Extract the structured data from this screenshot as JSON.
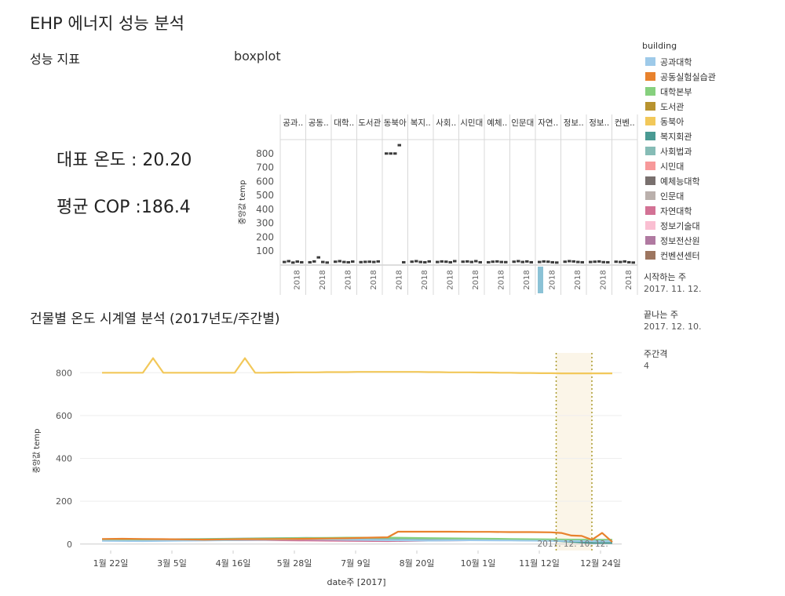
{
  "page": {
    "title": "EHP 에너지 성능 분석",
    "kpi_header": "성능 지표",
    "boxplot_header": "boxplot",
    "kpi_temp": "대표 온도 : 20.20",
    "kpi_cop": "평균 COP :186.4",
    "ts_header": "건물별  온도 시계열 분석 (2017년도/주간별)"
  },
  "legend": {
    "title": "building",
    "items": [
      {
        "label": "공과대학",
        "color": "#9ecae9"
      },
      {
        "label": "공동실험실습관",
        "color": "#e8822d"
      },
      {
        "label": "대학본부",
        "color": "#86d07e"
      },
      {
        "label": "도서관",
        "color": "#b8932f"
      },
      {
        "label": "동북아",
        "color": "#f2c85a"
      },
      {
        "label": "복지회관",
        "color": "#4a9a93"
      },
      {
        "label": "사회법과",
        "color": "#86bcb6"
      },
      {
        "label": "시민대",
        "color": "#f7999a"
      },
      {
        "label": "예체능대학",
        "color": "#79706e"
      },
      {
        "label": "인문대",
        "color": "#bab0ac"
      },
      {
        "label": "자연대학",
        "color": "#d37295"
      },
      {
        "label": "정보기술대",
        "color": "#fabfd2"
      },
      {
        "label": "정보전산원",
        "color": "#b07aa1"
      },
      {
        "label": "컨벤션센터",
        "color": "#9d7660"
      }
    ]
  },
  "filters": {
    "start_label": "시작하는 주",
    "start_value": "2017. 11. 12.",
    "end_label": "끝나는 주",
    "end_value": "2017. 12. 10.",
    "interval_label": "주간격",
    "interval_value": "4"
  },
  "chart_data": [
    {
      "type": "boxplot",
      "ylabel": "중앙값 temp",
      "ylim": [
        0,
        900
      ],
      "yticks": [
        100,
        200,
        300,
        400,
        500,
        600,
        700,
        800
      ],
      "column_headers": [
        "공과..",
        "공동..",
        "대학..",
        "도서관",
        "동북아",
        "복지..",
        "사회..",
        "시민대",
        "예체..",
        "인문대",
        "자연..",
        "정보..",
        "정보..",
        "컨벤.."
      ],
      "x_tick_label": "2018",
      "boxes": [
        {
          "values": [
            22,
            28,
            18,
            25,
            20
          ]
        },
        {
          "values": [
            20,
            26,
            55,
            22,
            18
          ]
        },
        {
          "values": [
            24,
            28,
            22,
            20,
            25
          ]
        },
        {
          "values": [
            21,
            23,
            24,
            22,
            26
          ]
        },
        {
          "values": [
            800,
            800,
            800,
            860,
            20
          ]
        },
        {
          "values": [
            24,
            28,
            22,
            20,
            26
          ]
        },
        {
          "values": [
            22,
            26,
            24,
            20,
            28
          ]
        },
        {
          "values": [
            24,
            26,
            22,
            28,
            20
          ]
        },
        {
          "values": [
            20,
            24,
            26,
            22,
            21
          ]
        },
        {
          "values": [
            24,
            28,
            22,
            26,
            20
          ]
        },
        {
          "values": [
            22,
            26,
            24,
            20,
            18
          ]
        },
        {
          "values": [
            24,
            28,
            26,
            22,
            20
          ]
        },
        {
          "values": [
            22,
            24,
            26,
            21,
            20
          ]
        },
        {
          "values": [
            24,
            22,
            26,
            20,
            18
          ]
        }
      ],
      "highlighted_column": 10
    },
    {
      "type": "line",
      "xlabel": "date주 [2017]",
      "ylabel": "중앙값 temp",
      "ylim": [
        -30,
        900
      ],
      "yticks": [
        0,
        200,
        400,
        600,
        800
      ],
      "x_ticks": [
        "1월 22일",
        "3월 5일",
        "4월 16일",
        "5월 28일",
        "7월 9일",
        "8월 20일",
        "10월 1일",
        "11월 12일",
        "12월 24일"
      ],
      "highlight_range_label": "2017. 12. 10. 12.",
      "highlight_range": [
        44.5,
        48
      ],
      "series": [
        {
          "name": "동북아",
          "color": "#f2c85a",
          "x": [
            0,
            1,
            2,
            3,
            4,
            5,
            6,
            7,
            8,
            9,
            10,
            11,
            12,
            13,
            14,
            15,
            16,
            17,
            18,
            19,
            20,
            21,
            22,
            23,
            24,
            25,
            26,
            27,
            28,
            29,
            30,
            31,
            32,
            33,
            34,
            35,
            36,
            37,
            38,
            39,
            40,
            41,
            42,
            43,
            44,
            45,
            46,
            47,
            48,
            49,
            50
          ],
          "values": [
            800,
            800,
            800,
            800,
            800,
            868,
            800,
            800,
            800,
            800,
            800,
            800,
            800,
            800,
            868,
            800,
            800,
            801,
            801,
            802,
            802,
            802,
            803,
            803,
            803,
            804,
            804,
            804,
            804,
            804,
            804,
            804,
            803,
            803,
            802,
            802,
            802,
            801,
            801,
            800,
            800,
            799,
            799,
            798,
            798,
            797,
            797,
            797,
            797,
            797,
            797
          ]
        },
        {
          "name": "공동실험실습관",
          "color": "#e8822d",
          "x": [
            0,
            2,
            4,
            6,
            8,
            10,
            12,
            14,
            16,
            18,
            20,
            22,
            24,
            26,
            28,
            29,
            30,
            32,
            34,
            36,
            38,
            40,
            42,
            44,
            45,
            46,
            47,
            48,
            49,
            50
          ],
          "values": [
            24,
            25,
            24,
            23,
            22,
            21,
            22,
            23,
            23,
            24,
            25,
            26,
            27,
            30,
            32,
            58,
            58,
            58,
            58,
            57,
            57,
            56,
            56,
            55,
            52,
            40,
            38,
            20,
            52,
            10
          ]
        },
        {
          "name": "공과대학",
          "color": "#9ecae9",
          "x": [
            0,
            4,
            8,
            12,
            16,
            20,
            24,
            28,
            32,
            36,
            40,
            44,
            48,
            50
          ],
          "values": [
            15,
            14,
            16,
            18,
            20,
            24,
            20,
            18,
            16,
            18,
            17,
            15,
            14,
            14
          ]
        },
        {
          "name": "대학본부",
          "color": "#86d07e",
          "x": [
            0,
            4,
            8,
            12,
            16,
            20,
            24,
            28,
            32,
            36,
            40,
            44,
            48,
            50
          ],
          "values": [
            18,
            20,
            22,
            24,
            26,
            28,
            30,
            30,
            28,
            26,
            24,
            22,
            20,
            20
          ]
        },
        {
          "name": "사회법과",
          "color": "#86bcb6",
          "x": [
            0,
            4,
            8,
            12,
            16,
            20,
            24,
            28,
            32,
            36,
            40,
            44,
            48,
            50
          ],
          "values": [
            22,
            21,
            23,
            25,
            27,
            29,
            28,
            26,
            25,
            24,
            22,
            21,
            20,
            20
          ]
        },
        {
          "name": "자연대학",
          "color": "#d37295",
          "x": [
            0,
            4,
            8,
            12,
            16,
            20,
            24,
            28,
            32,
            36,
            40,
            44,
            48,
            50
          ],
          "values": [
            20,
            18,
            17,
            18,
            19,
            17,
            15,
            14,
            16,
            18,
            19,
            18,
            17,
            17
          ]
        },
        {
          "name": "복지회관",
          "color": "#4a9a93",
          "x": [
            0,
            4,
            8,
            12,
            16,
            20,
            24,
            28,
            32,
            36,
            40,
            44,
            48,
            50
          ],
          "values": [
            16,
            17,
            18,
            19,
            20,
            22,
            23,
            24,
            22,
            20,
            18,
            16,
            5,
            5
          ]
        }
      ]
    }
  ]
}
